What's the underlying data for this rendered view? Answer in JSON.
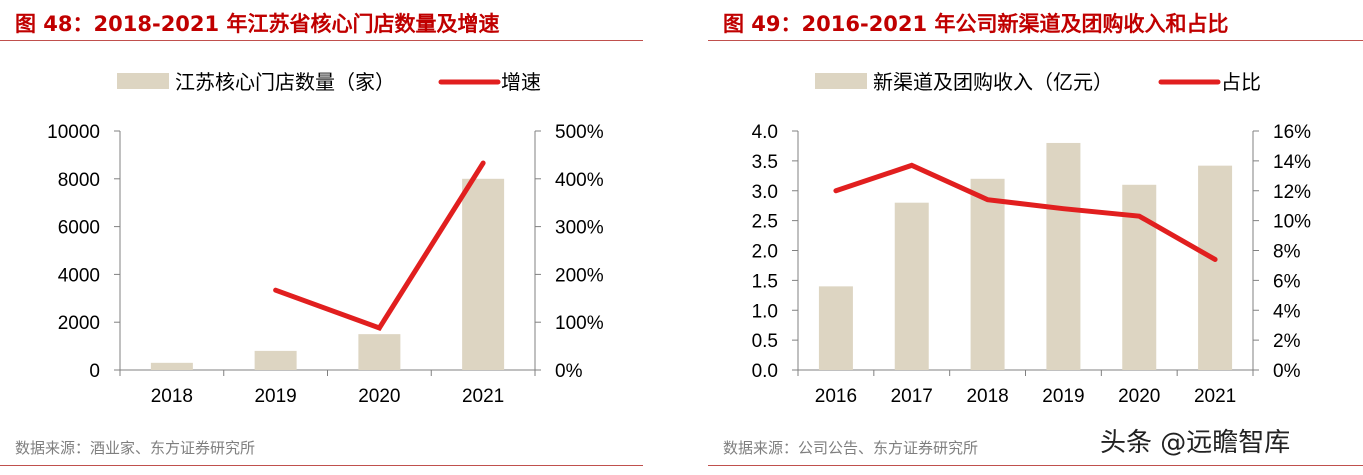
{
  "panels": [
    {
      "title": "图 48：2018-2021 年江苏省核心门店数量及增速",
      "source": "数据来源：酒业家、东方证券研究所"
    },
    {
      "title": "图 49：2016-2021 年公司新渠道及团购收入和占比",
      "source": "数据来源：公司公告、东方证券研究所"
    }
  ],
  "watermark": "头条 @远瞻智库",
  "colors": {
    "bar": "#ddd5c2",
    "line": "#e11f1f",
    "accent": "#c00000",
    "rule": "#c0504d"
  },
  "chart_data": [
    {
      "type": "bar+line",
      "categories": [
        "2018",
        "2019",
        "2020",
        "2021"
      ],
      "series": [
        {
          "name": "江苏核心门店数量（家）",
          "kind": "bar",
          "axis": "left",
          "values": [
            300,
            800,
            1500,
            8000
          ]
        },
        {
          "name": "增速",
          "kind": "line",
          "axis": "right",
          "values": [
            null,
            1.67,
            0.88,
            4.33
          ]
        }
      ],
      "left_axis": {
        "min": 0,
        "max": 10000,
        "ticks": [
          "0",
          "2000",
          "4000",
          "6000",
          "8000",
          "10000"
        ]
      },
      "right_axis": {
        "min": 0,
        "max": 5,
        "ticks": [
          "0%",
          "100%",
          "200%",
          "300%",
          "400%",
          "500%"
        ]
      },
      "legend_position": "top"
    },
    {
      "type": "bar+line",
      "categories": [
        "2016",
        "2017",
        "2018",
        "2019",
        "2020",
        "2021"
      ],
      "series": [
        {
          "name": "新渠道及团购收入（亿元）",
          "kind": "bar",
          "axis": "left",
          "values": [
            1.4,
            2.8,
            3.2,
            3.8,
            3.1,
            3.42
          ]
        },
        {
          "name": "占比",
          "kind": "line",
          "axis": "right",
          "values": [
            0.12,
            0.137,
            0.114,
            0.108,
            0.103,
            0.074
          ]
        }
      ],
      "left_axis": {
        "min": 0,
        "max": 4,
        "ticks": [
          "0.0",
          "0.5",
          "1.0",
          "1.5",
          "2.0",
          "2.5",
          "3.0",
          "3.5",
          "4.0"
        ]
      },
      "right_axis": {
        "min": 0,
        "max": 0.16,
        "ticks": [
          "0%",
          "2%",
          "4%",
          "6%",
          "8%",
          "10%",
          "12%",
          "14%",
          "16%"
        ]
      },
      "legend_position": "top"
    }
  ]
}
